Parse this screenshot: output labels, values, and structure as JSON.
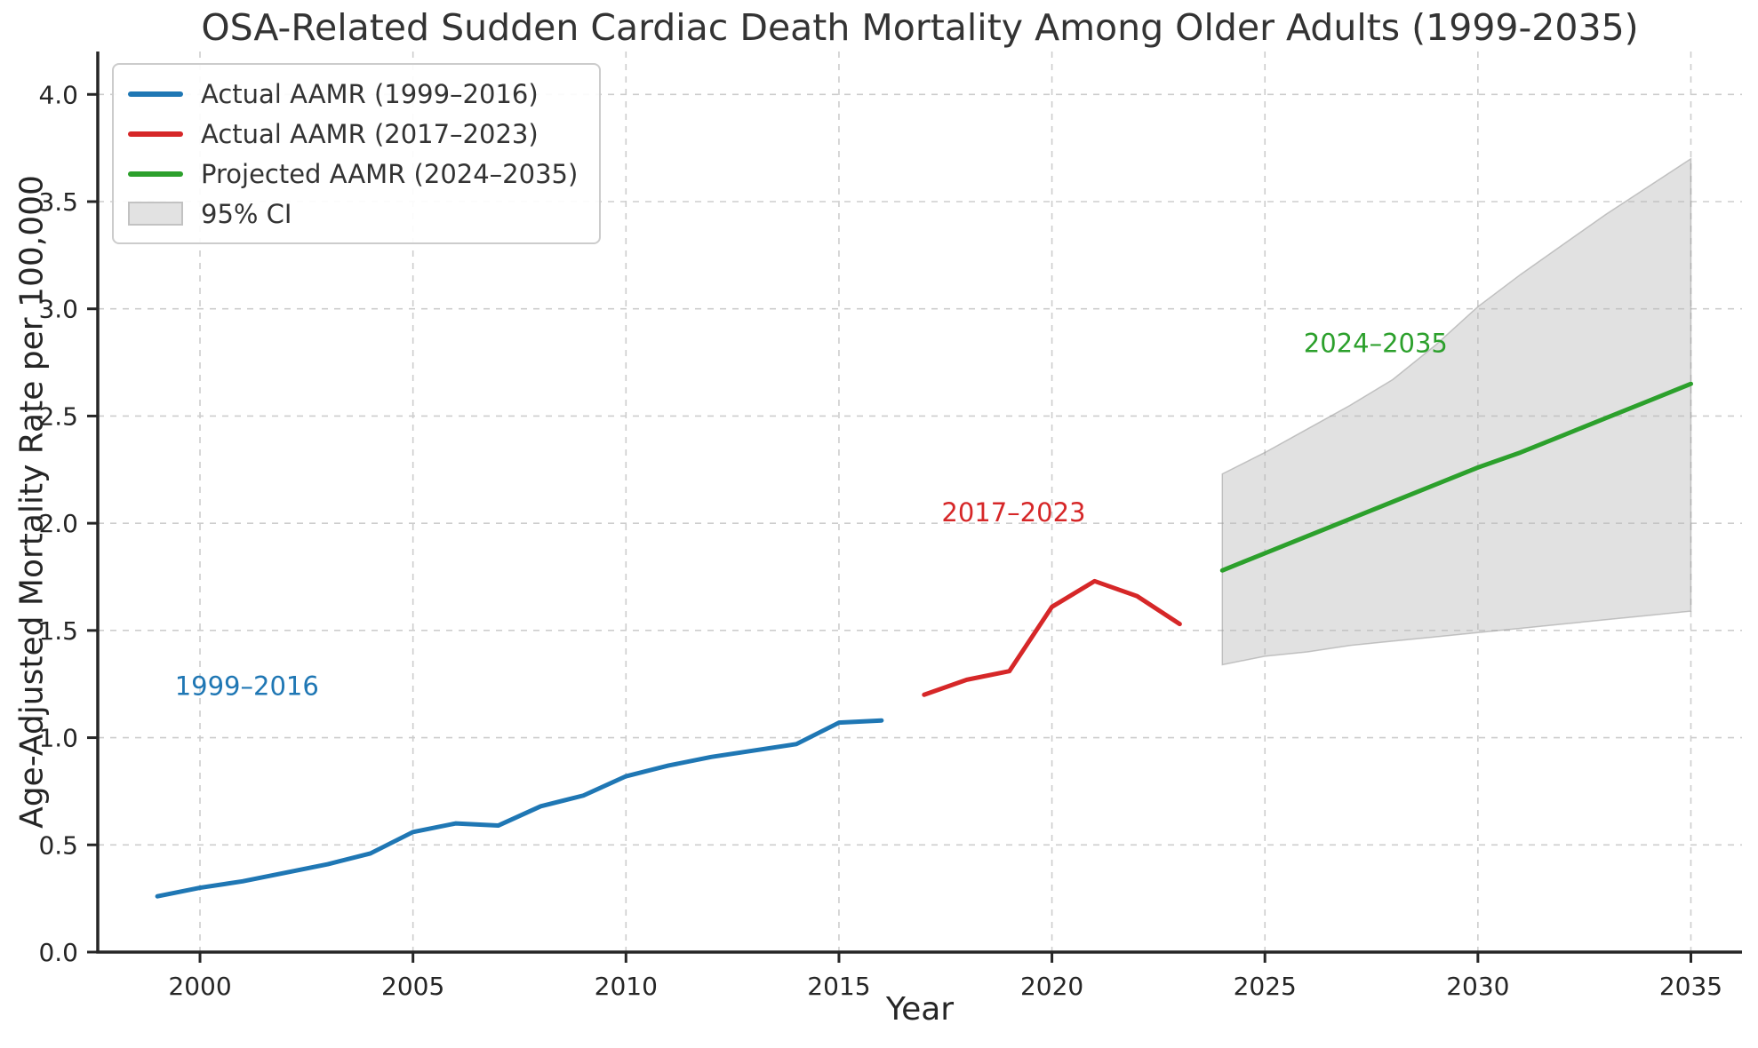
{
  "figure": {
    "title": "OSA-Related Sudden Cardiac Death Mortality Among Older Adults (1999-2035)",
    "xlabel": "Year",
    "ylabel": "Age-Adjusted Mortality Rate per 100,000"
  },
  "legend": {
    "position": "upper left",
    "items": [
      {
        "label": "Actual AAMR (1999–2016)",
        "type": "line",
        "color": "#1f77b4"
      },
      {
        "label": "Actual AAMR (2017–2023)",
        "type": "line",
        "color": "#d62728"
      },
      {
        "label": "Projected AAMR (2024–2035)",
        "type": "line",
        "color": "#2ca02c"
      },
      {
        "label": "95% CI",
        "type": "patch",
        "color": "#e2e2e2",
        "border": "#c2c2c2"
      }
    ]
  },
  "chart_data": {
    "type": "line",
    "title": "OSA-Related Sudden Cardiac Death Mortality Among Older Adults (1999-2035)",
    "xlabel": "Year",
    "ylabel": "Age-Adjusted Mortality Rate per 100,000",
    "xlim": [
      1997.6,
      2036.2
    ],
    "ylim": [
      0,
      4.2
    ],
    "grid": "dashed",
    "legend_position": "upper left",
    "x_ticks": [
      2000,
      2005,
      2010,
      2015,
      2020,
      2025,
      2030,
      2035
    ],
    "x_tick_labels": [
      "2000",
      "2005",
      "2010",
      "2015",
      "2020",
      "2025",
      "2030",
      "2035"
    ],
    "y_ticks": [
      0.0,
      0.5,
      1.0,
      1.5,
      2.0,
      2.5,
      3.0,
      3.5,
      4.0
    ],
    "y_tick_labels": [
      "0.0",
      "0.5",
      "1.0",
      "1.5",
      "2.0",
      "2.5",
      "3.0",
      "3.5",
      "4.0"
    ],
    "series": [
      {
        "name": "Actual AAMR (1999–2016)",
        "color": "#1f77b4",
        "x": [
          1999,
          2000,
          2001,
          2002,
          2003,
          2004,
          2005,
          2006,
          2007,
          2008,
          2009,
          2010,
          2011,
          2012,
          2013,
          2014,
          2015,
          2016
        ],
        "y": [
          0.26,
          0.3,
          0.33,
          0.37,
          0.41,
          0.46,
          0.56,
          0.6,
          0.59,
          0.68,
          0.73,
          0.82,
          0.87,
          0.91,
          0.94,
          0.97,
          1.07,
          1.08
        ]
      },
      {
        "name": "Actual AAMR (2017–2023)",
        "color": "#d62728",
        "x": [
          2017,
          2018,
          2019,
          2020,
          2021,
          2022,
          2023
        ],
        "y": [
          1.2,
          1.27,
          1.31,
          1.61,
          1.73,
          1.66,
          1.53
        ]
      },
      {
        "name": "Projected AAMR (2024–2035)",
        "color": "#2ca02c",
        "x": [
          2024,
          2025,
          2026,
          2027,
          2028,
          2029,
          2030,
          2031,
          2032,
          2033,
          2034,
          2035
        ],
        "y": [
          1.78,
          1.86,
          1.94,
          2.02,
          2.1,
          2.18,
          2.26,
          2.33,
          2.41,
          2.49,
          2.57,
          2.65
        ]
      }
    ],
    "ci_band": {
      "name": "95% CI",
      "x": [
        2024,
        2025,
        2026,
        2027,
        2028,
        2029,
        2030,
        2031,
        2032,
        2033,
        2034,
        2035
      ],
      "lower": [
        1.34,
        1.38,
        1.4,
        1.43,
        1.45,
        1.47,
        1.49,
        1.51,
        1.53,
        1.55,
        1.57,
        1.59
      ],
      "upper": [
        2.23,
        2.33,
        2.44,
        2.55,
        2.67,
        2.83,
        3.01,
        3.16,
        3.3,
        3.44,
        3.57,
        3.7
      ],
      "fill": "rgba(184,184,184,0.42)",
      "edge": "rgba(155,155,155,0.55)"
    },
    "annotations": [
      {
        "text": "1999–2016",
        "x": 2001.1,
        "y": 1.24,
        "color": "#1f77b4"
      },
      {
        "text": "2017–2023",
        "x": 2019.1,
        "y": 2.05,
        "color": "#d62728"
      },
      {
        "text": "2024–2035",
        "x": 2027.6,
        "y": 2.84,
        "color": "#2ca02c"
      }
    ]
  }
}
